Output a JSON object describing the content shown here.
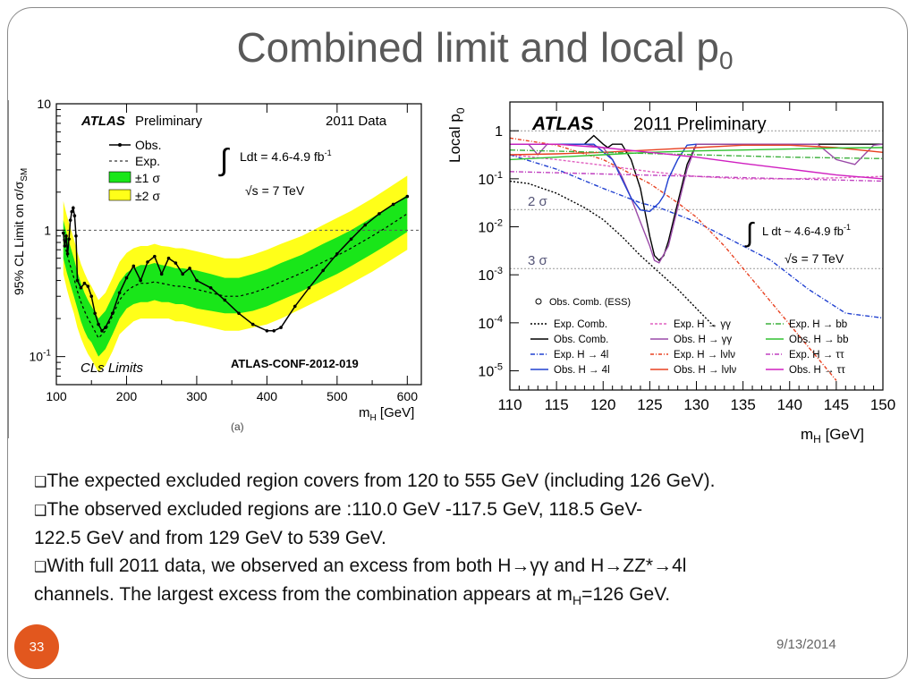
{
  "slide": {
    "title_main": "Combined limit and local p",
    "title_sub": "0",
    "page_number": "33",
    "date": "9/13/2014",
    "bullets": [
      {
        "marker": "❑",
        "text": "The expected excluded region covers from 120 to 555 GeV (including 126 GeV)."
      },
      {
        "marker": "❑",
        "text": "The observed excluded regions are :110.0 GeV -117.5 GeV, 118.5 GeV-"
      },
      {
        "marker": "",
        "text": "122.5 GeV and from 129 GeV to 539 GeV."
      },
      {
        "marker": "❑",
        "text": "With full 2011 data, we observed an excess from both H→γγ and H→ZZ*→4l"
      },
      {
        "marker": "",
        "text_pre": "channels. The largest excess from the combination appears at m",
        "text_sub": "H",
        "text_post": "=126 GeV."
      }
    ]
  },
  "chart_data": [
    {
      "type": "line",
      "ylabel_pre": "95% CL Limit on σ/σ",
      "ylabel_sub": "SM",
      "xlabel_pre": "m",
      "xlabel_sub": "H",
      "xlabel_post": " [GeV]",
      "xlim": [
        100,
        620
      ],
      "ylim": [
        0.06,
        10
      ],
      "yscale": "log",
      "xticks": [
        "100",
        "200",
        "300",
        "400",
        "500",
        "600"
      ],
      "yticks": [
        "10",
        "1",
        "10-1"
      ],
      "texts": {
        "atlas": "ATLAS",
        "preliminary": "Preliminary",
        "year": "2011 Data",
        "lumi": "Ldt = 4.6-4.9 fb",
        "lumi_exp": "-1",
        "energy": "√s = 7 TeV",
        "method": "CLs Limits",
        "conf": "ATLAS-CONF-2012-019",
        "panel": "(a)"
      },
      "legend": [
        "Obs.",
        "Exp.",
        "±1 σ",
        "±2 σ"
      ],
      "colors": {
        "band1": "#19e619",
        "band2": "#ffff19",
        "obs": "#000000"
      },
      "x": [
        110,
        115,
        120,
        125,
        130,
        135,
        140,
        145,
        150,
        160,
        170,
        180,
        190,
        200,
        210,
        220,
        230,
        240,
        250,
        260,
        270,
        280,
        300,
        320,
        340,
        360,
        380,
        400,
        420,
        450,
        480,
        500,
        520,
        550,
        570,
        600
      ],
      "expected": [
        0.85,
        0.65,
        0.52,
        0.42,
        0.33,
        0.27,
        0.23,
        0.2,
        0.18,
        0.14,
        0.16,
        0.21,
        0.28,
        0.33,
        0.36,
        0.38,
        0.38,
        0.39,
        0.38,
        0.37,
        0.36,
        0.36,
        0.34,
        0.32,
        0.3,
        0.3,
        0.32,
        0.35,
        0.39,
        0.46,
        0.56,
        0.63,
        0.72,
        0.9,
        1.05,
        1.35
      ],
      "sigma1_low": [
        0.6,
        0.46,
        0.37,
        0.3,
        0.24,
        0.19,
        0.16,
        0.14,
        0.13,
        0.1,
        0.115,
        0.15,
        0.2,
        0.24,
        0.26,
        0.27,
        0.27,
        0.28,
        0.27,
        0.27,
        0.26,
        0.26,
        0.24,
        0.23,
        0.22,
        0.22,
        0.23,
        0.25,
        0.28,
        0.33,
        0.4,
        0.45,
        0.52,
        0.65,
        0.76,
        0.97
      ],
      "sigma1_high": [
        1.2,
        0.92,
        0.74,
        0.6,
        0.47,
        0.38,
        0.32,
        0.28,
        0.25,
        0.2,
        0.23,
        0.3,
        0.39,
        0.46,
        0.5,
        0.53,
        0.53,
        0.55,
        0.53,
        0.52,
        0.5,
        0.5,
        0.48,
        0.45,
        0.42,
        0.42,
        0.45,
        0.49,
        0.55,
        0.64,
        0.78,
        0.88,
        1.0,
        1.26,
        1.47,
        1.9
      ],
      "sigma2_low": [
        0.45,
        0.34,
        0.27,
        0.22,
        0.17,
        0.14,
        0.12,
        0.105,
        0.095,
        0.075,
        0.085,
        0.11,
        0.15,
        0.17,
        0.19,
        0.2,
        0.2,
        0.2,
        0.2,
        0.2,
        0.19,
        0.19,
        0.18,
        0.17,
        0.16,
        0.16,
        0.17,
        0.18,
        0.2,
        0.24,
        0.29,
        0.33,
        0.38,
        0.47,
        0.55,
        0.7
      ],
      "sigma2_high": [
        1.7,
        1.3,
        1.05,
        0.85,
        0.67,
        0.54,
        0.46,
        0.4,
        0.36,
        0.28,
        0.32,
        0.42,
        0.56,
        0.66,
        0.72,
        0.75,
        0.75,
        0.78,
        0.75,
        0.74,
        0.72,
        0.72,
        0.68,
        0.64,
        0.6,
        0.6,
        0.64,
        0.7,
        0.78,
        0.9,
        1.1,
        1.25,
        1.42,
        1.78,
        2.1,
        2.7
      ],
      "observed_x": [
        110,
        112,
        114,
        116,
        118,
        120,
        122,
        124,
        126,
        128,
        130,
        135,
        140,
        145,
        150,
        155,
        160,
        165,
        170,
        180,
        190,
        200,
        210,
        220,
        230,
        240,
        250,
        260,
        270,
        280,
        290,
        300,
        320,
        340,
        360,
        380,
        400,
        410,
        420,
        440,
        460,
        480,
        500,
        520,
        540,
        560,
        580,
        600
      ],
      "observed": [
        0.95,
        0.75,
        0.9,
        0.65,
        0.85,
        1.2,
        1.4,
        1.5,
        1.3,
        0.9,
        0.4,
        0.35,
        0.38,
        0.36,
        0.3,
        0.22,
        0.18,
        0.16,
        0.17,
        0.22,
        0.32,
        0.42,
        0.52,
        0.4,
        0.56,
        0.62,
        0.45,
        0.6,
        0.55,
        0.45,
        0.5,
        0.4,
        0.35,
        0.28,
        0.22,
        0.18,
        0.16,
        0.16,
        0.17,
        0.25,
        0.35,
        0.48,
        0.65,
        0.85,
        1.1,
        1.35,
        1.6,
        1.85
      ]
    },
    {
      "type": "line",
      "ylabel_pre": "Local p",
      "ylabel_sub": "0",
      "xlabel_pre": "m",
      "xlabel_sub": "H",
      "xlabel_post": " [GeV]",
      "xlim": [
        110,
        150
      ],
      "yscale": "log",
      "ylim_exp": [
        -5.4,
        0.6
      ],
      "xticks": [
        "110",
        "115",
        "120",
        "125",
        "130",
        "135",
        "140",
        "145",
        "150"
      ],
      "yticks": [
        {
          "base": "1",
          "exp": "",
          "v": 0
        },
        {
          "base": "10",
          "exp": "-1",
          "v": -1
        },
        {
          "base": "10",
          "exp": "-2",
          "v": -2
        },
        {
          "base": "10",
          "exp": "-3",
          "v": -3
        },
        {
          "base": "10",
          "exp": "-4",
          "v": -4
        },
        {
          "base": "10",
          "exp": "-5",
          "v": -5
        }
      ],
      "sigma_lines": [
        {
          "label": "2 σ",
          "v": -1.64
        },
        {
          "label": "3 σ",
          "v": -2.87
        }
      ],
      "texts": {
        "atlas": "ATLAS",
        "title": "2011 Preliminary",
        "lumi": "L dt ~ 4.6-4.9 fb",
        "lumi_exp": "-1",
        "energy": "√s = 7 TeV",
        "ess": "Obs. Comb. (ESS)"
      },
      "legend": [
        {
          "label": "Exp. Comb.",
          "color": "#000000",
          "dash": "2,2"
        },
        {
          "label": "Exp. H → γγ",
          "color": "#e060c0",
          "dash": "3,2"
        },
        {
          "label": "Exp. H → bb",
          "color": "#3cb03c",
          "dash": "6,2,1,2"
        },
        {
          "label": "Obs. Comb.",
          "color": "#000000",
          "dash": ""
        },
        {
          "label": "Obs. H → γγ",
          "color": "#9a4aa8",
          "dash": ""
        },
        {
          "label": "Obs. H → bb",
          "color": "#30c030",
          "dash": ""
        },
        {
          "label": "Exp. H → 4l",
          "color": "#2040d0",
          "dash": "5,2,1,2"
        },
        {
          "label": "Exp. H → lνlν",
          "color": "#e84020",
          "dash": "4,2,1,2"
        },
        {
          "label": "Exp. H → ττ",
          "color": "#c040c0",
          "dash": "5,2,1,2"
        },
        {
          "label": "Obs. H → 4l",
          "color": "#2040d0",
          "dash": ""
        },
        {
          "label": "Obs. H → lνlν",
          "color": "#e84020",
          "dash": ""
        },
        {
          "label": "Obs. H → ττ",
          "color": "#d020c0",
          "dash": ""
        }
      ],
      "series": [
        {
          "name": "Exp. Comb.",
          "color": "#000000",
          "dash": "2,2",
          "x": [
            110,
            112,
            115,
            118,
            120,
            122,
            124,
            126,
            128,
            130,
            132
          ],
          "y": [
            -1.05,
            -1.1,
            -1.3,
            -1.6,
            -1.85,
            -2.2,
            -2.6,
            -2.95,
            -3.3,
            -3.7,
            -4.1
          ]
        },
        {
          "name": "Obs. Comb.",
          "color": "#000000",
          "dash": "",
          "x": [
            110,
            118,
            119,
            120,
            120.5,
            121,
            122,
            123,
            124,
            125,
            125.5,
            126,
            126.5,
            127,
            128,
            129,
            130,
            132,
            140,
            150
          ],
          "y": [
            -0.28,
            -0.28,
            -0.1,
            -0.28,
            -0.35,
            -0.28,
            -0.28,
            -0.6,
            -1.2,
            -2.2,
            -2.6,
            -2.7,
            -2.6,
            -2.3,
            -1.5,
            -0.7,
            -0.28,
            -0.28,
            -0.28,
            -0.28
          ]
        },
        {
          "name": "Exp. H → γγ",
          "color": "#e060c0",
          "dash": "3,2",
          "x": [
            110,
            115,
            120,
            125,
            130,
            135,
            140,
            145,
            150
          ],
          "y": [
            -0.5,
            -0.6,
            -0.72,
            -0.85,
            -0.95,
            -1.0,
            -1.0,
            -0.98,
            -0.95
          ]
        },
        {
          "name": "Obs. H → γγ",
          "color": "#9a4aa8",
          "dash": "",
          "x": [
            110,
            112,
            113,
            114,
            116,
            118,
            120,
            121,
            122,
            123,
            124,
            125,
            125.5,
            126,
            127,
            128,
            129,
            130,
            132,
            135,
            140,
            143,
            145,
            147,
            148,
            149,
            150
          ],
          "y": [
            -0.28,
            -0.28,
            -0.5,
            -0.28,
            -0.28,
            -0.28,
            -0.35,
            -0.6,
            -0.95,
            -1.4,
            -1.9,
            -2.4,
            -2.7,
            -2.75,
            -2.4,
            -1.6,
            -0.8,
            -0.28,
            -0.28,
            -0.28,
            -0.28,
            -0.28,
            -0.6,
            -0.7,
            -0.5,
            -0.3,
            -0.28
          ]
        },
        {
          "name": "Exp. H → 4l",
          "color": "#2040d0",
          "dash": "5,2,1,2",
          "x": [
            110,
            115,
            120,
            124,
            126,
            128,
            130,
            134,
            138,
            142,
            146,
            150
          ],
          "y": [
            -0.5,
            -0.8,
            -1.2,
            -1.5,
            -1.6,
            -1.75,
            -1.9,
            -2.3,
            -2.7,
            -3.3,
            -3.8,
            -3.9
          ]
        },
        {
          "name": "Obs. H → 4l",
          "color": "#2040d0",
          "dash": "",
          "x": [
            110,
            115,
            119,
            121,
            122,
            123,
            124,
            125,
            126,
            126.5,
            127,
            128,
            129,
            130
          ],
          "y": [
            -0.28,
            -0.28,
            -0.28,
            -0.6,
            -1.0,
            -1.4,
            -1.65,
            -1.68,
            -1.5,
            -1.35,
            -1.0,
            -0.6,
            -0.3,
            -0.28
          ]
        },
        {
          "name": "Exp. H → lνlν",
          "color": "#e84020",
          "dash": "4,2,1,2",
          "x": [
            110,
            115,
            120,
            125,
            128,
            130,
            133,
            136,
            139,
            142,
            145
          ],
          "y": [
            -0.15,
            -0.3,
            -0.6,
            -1.1,
            -1.5,
            -1.8,
            -2.4,
            -3.1,
            -3.8,
            -4.5,
            -5.2
          ]
        },
        {
          "name": "Obs. H → lνlν",
          "color": "#e84020",
          "dash": "",
          "x": [
            110,
            115,
            120,
            125,
            130,
            135,
            140,
            145,
            150
          ],
          "y": [
            -0.5,
            -0.48,
            -0.45,
            -0.4,
            -0.35,
            -0.3,
            -0.3,
            -0.35,
            -0.45
          ]
        },
        {
          "name": "Exp. H → bb",
          "color": "#3cb03c",
          "dash": "6,2,1,2",
          "x": [
            110,
            120,
            130,
            140,
            150
          ],
          "y": [
            -0.4,
            -0.45,
            -0.5,
            -0.55,
            -0.58
          ]
        },
        {
          "name": "Obs. H → bb",
          "color": "#30c030",
          "dash": "",
          "x": [
            110,
            115,
            120,
            125,
            130,
            135,
            140,
            145,
            150
          ],
          "y": [
            -0.6,
            -0.55,
            -0.5,
            -0.45,
            -0.42,
            -0.4,
            -0.38,
            -0.36,
            -0.35
          ]
        },
        {
          "name": "Exp. H → ττ",
          "color": "#c040c0",
          "dash": "5,2,1,2",
          "x": [
            110,
            120,
            130,
            140,
            150
          ],
          "y": [
            -0.85,
            -0.9,
            -0.95,
            -1.0,
            -1.05
          ]
        },
        {
          "name": "Obs. H → ττ",
          "color": "#d020c0",
          "dash": "",
          "x": [
            110,
            115,
            120,
            125,
            130,
            135,
            140,
            145,
            150
          ],
          "y": [
            -0.28,
            -0.28,
            -0.35,
            -0.45,
            -0.55,
            -0.68,
            -0.8,
            -0.92,
            -1.0
          ]
        }
      ]
    }
  ]
}
